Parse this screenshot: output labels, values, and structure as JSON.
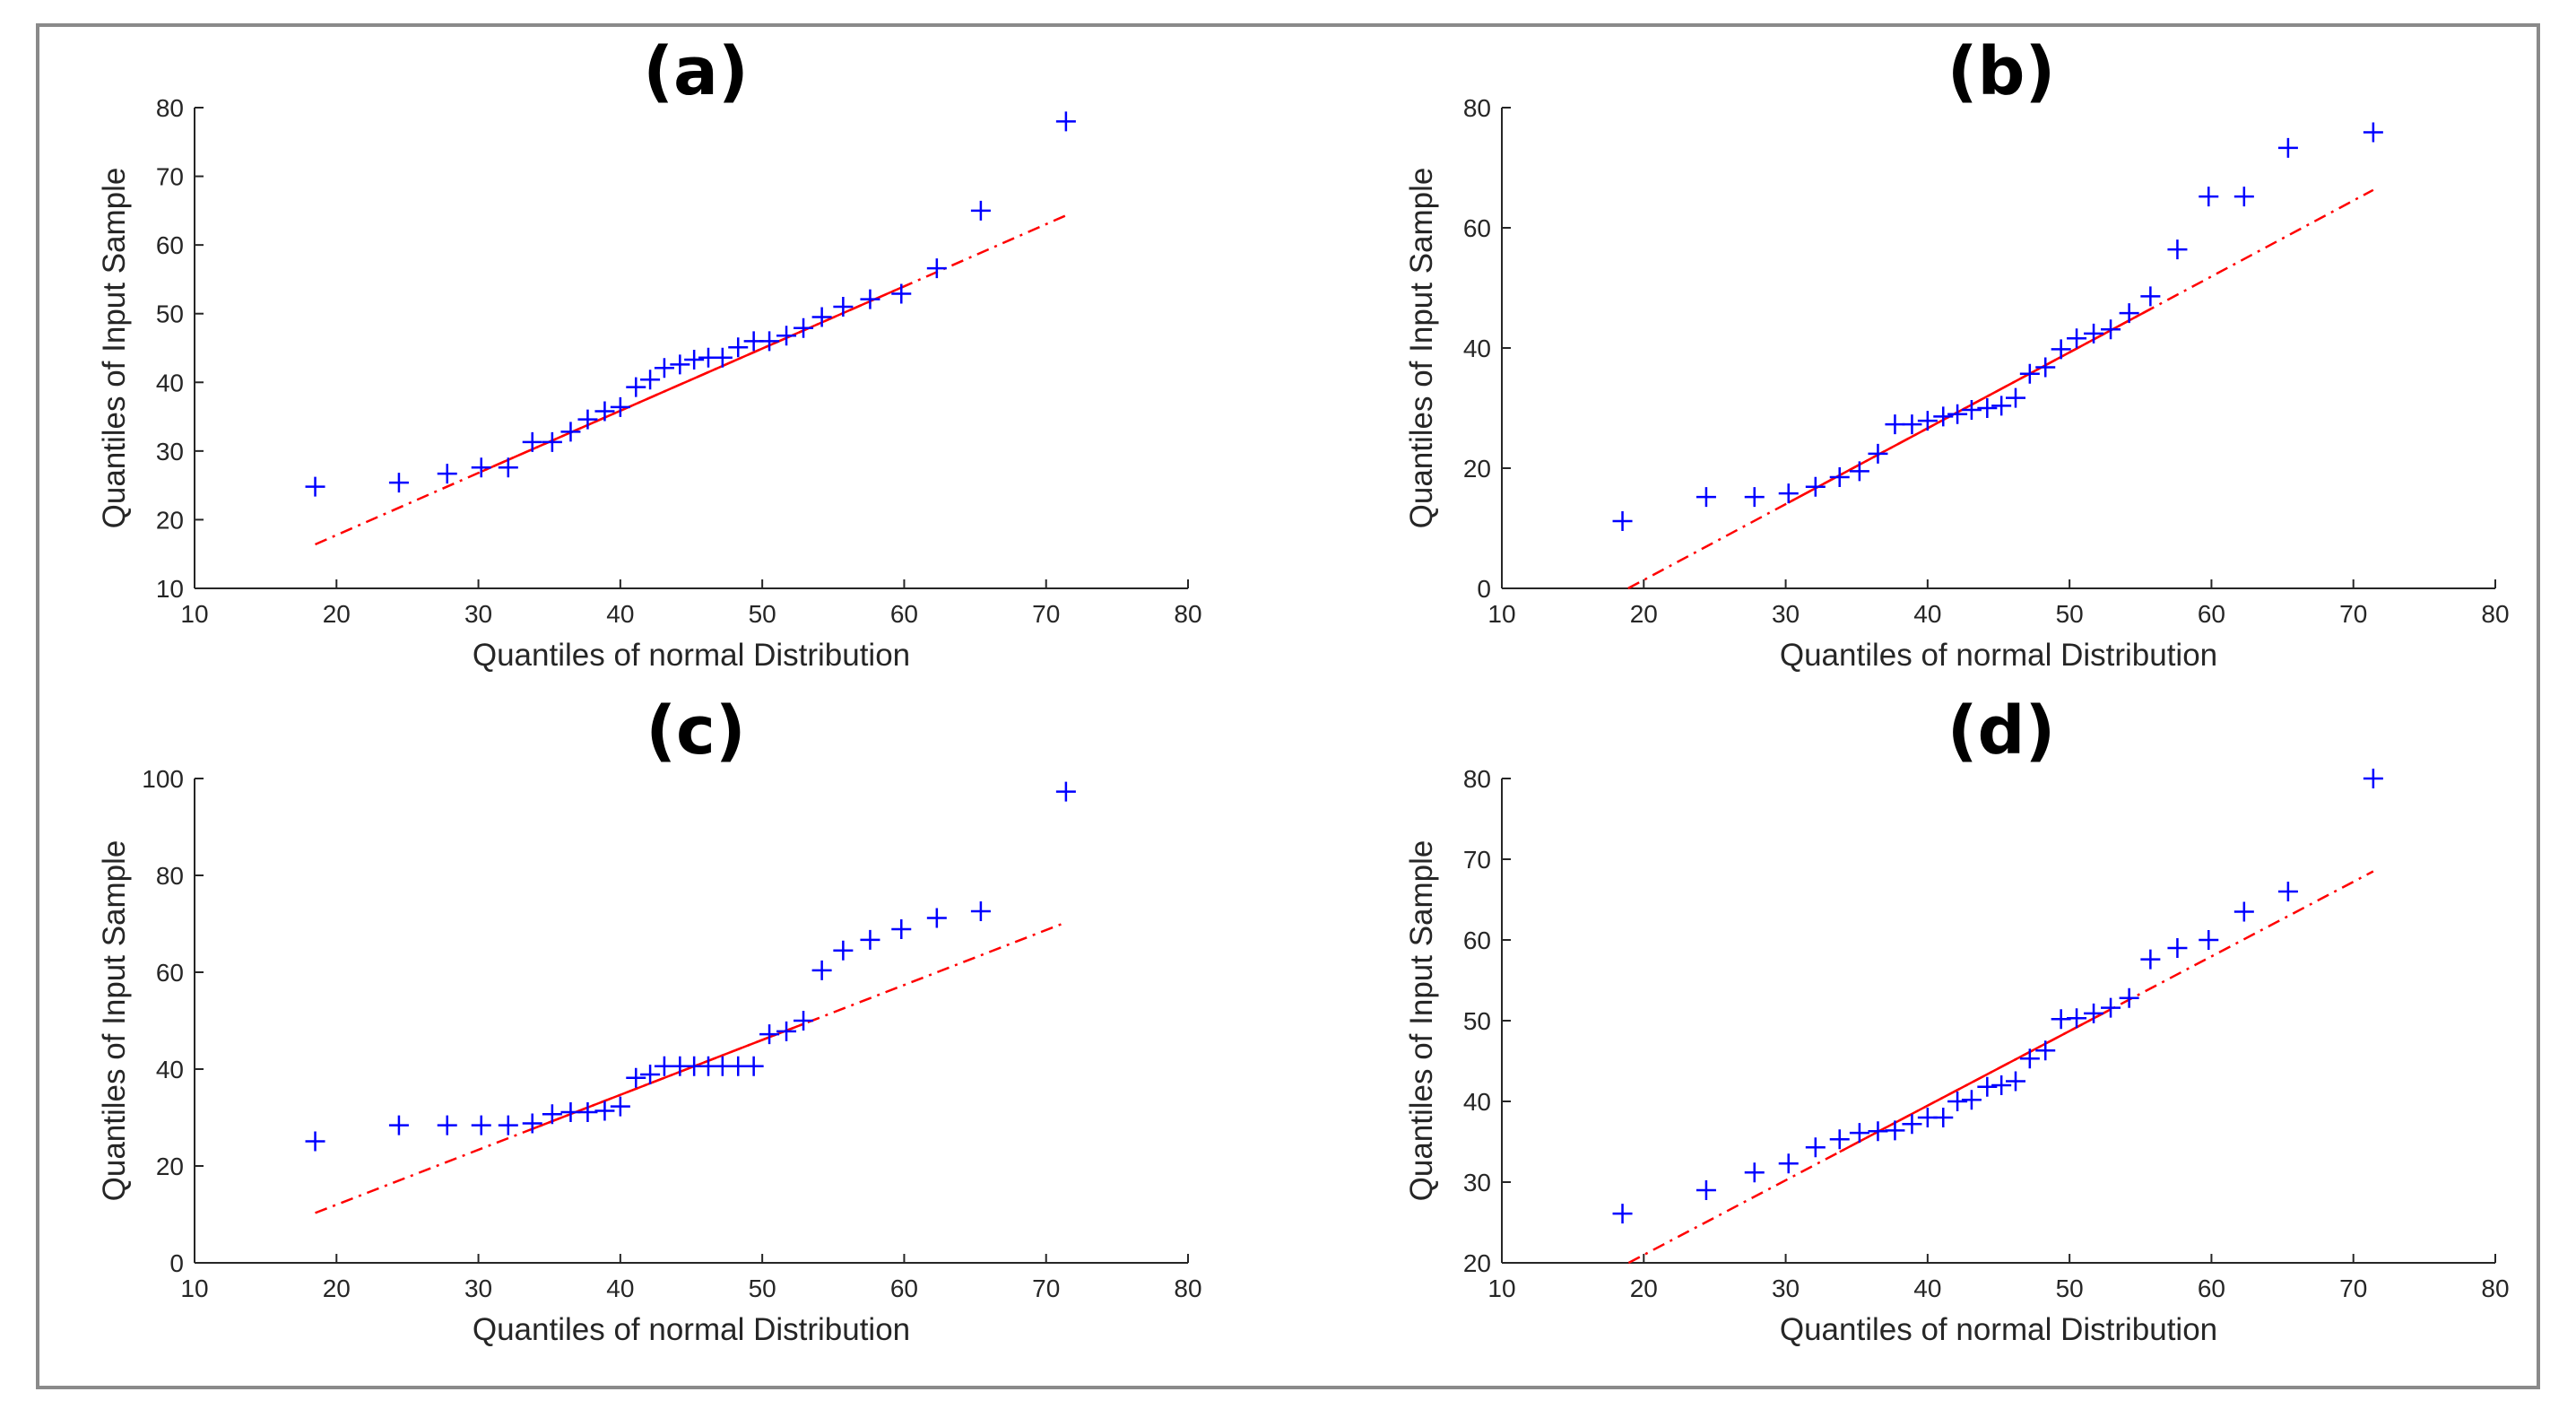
{
  "chart_data": [
    {
      "type": "scatter",
      "title": "(a)",
      "xlabel": "Quantiles of normal Distribution",
      "ylabel": "Quantiles of Input Sample",
      "xlim": [
        10,
        80
      ],
      "ylim": [
        10,
        80
      ],
      "xticks": [
        10,
        20,
        30,
        40,
        50,
        60,
        70,
        80
      ],
      "yticks": [
        10,
        20,
        30,
        40,
        50,
        60,
        70,
        80
      ],
      "marker_color": "#0000ff",
      "line_color": "#ff0000",
      "points": [
        [
          18.5,
          24.8
        ],
        [
          24.4,
          25.4
        ],
        [
          27.8,
          26.7
        ],
        [
          30.2,
          27.6
        ],
        [
          32.1,
          27.6
        ],
        [
          33.8,
          31.3
        ],
        [
          35.2,
          31.3
        ],
        [
          36.5,
          32.8
        ],
        [
          37.7,
          34.6
        ],
        [
          38.9,
          35.8
        ],
        [
          40.0,
          36.4
        ],
        [
          41.1,
          39.3
        ],
        [
          42.1,
          40.4
        ],
        [
          43.1,
          42.1
        ],
        [
          44.2,
          42.6
        ],
        [
          45.2,
          43.3
        ],
        [
          46.2,
          43.6
        ],
        [
          47.2,
          43.6
        ],
        [
          48.3,
          45.1
        ],
        [
          49.4,
          46.0
        ],
        [
          50.5,
          46.0
        ],
        [
          51.7,
          46.8
        ],
        [
          52.9,
          47.9
        ],
        [
          54.2,
          49.5
        ],
        [
          55.7,
          51.0
        ],
        [
          57.6,
          52.1
        ],
        [
          59.8,
          52.9
        ],
        [
          62.3,
          56.6
        ],
        [
          65.4,
          65.0
        ],
        [
          71.4,
          78.0
        ]
      ],
      "fit_line": {
        "x": [
          18.5,
          71.4
        ],
        "y": [
          16.4,
          64.3
        ],
        "solid_x": [
          30.2,
          59.8
        ]
      }
    },
    {
      "type": "scatter",
      "title": "(b)",
      "xlabel": "Quantiles of normal Distribution",
      "ylabel": "Quantiles of Input Sample",
      "xlim": [
        10,
        80
      ],
      "ylim": [
        0,
        80
      ],
      "xticks": [
        10,
        20,
        30,
        40,
        50,
        60,
        70,
        80
      ],
      "yticks": [
        0,
        20,
        40,
        60,
        80
      ],
      "marker_color": "#0000ff",
      "line_color": "#ff0000",
      "points": [
        [
          18.5,
          11.2
        ],
        [
          24.4,
          15.2
        ],
        [
          27.8,
          15.2
        ],
        [
          30.2,
          15.8
        ],
        [
          32.1,
          16.9
        ],
        [
          33.8,
          18.5
        ],
        [
          35.2,
          19.5
        ],
        [
          36.5,
          22.4
        ],
        [
          37.7,
          27.3
        ],
        [
          38.9,
          27.3
        ],
        [
          40.0,
          27.9
        ],
        [
          41.1,
          28.6
        ],
        [
          42.1,
          29.0
        ],
        [
          43.1,
          29.7
        ],
        [
          44.2,
          30.0
        ],
        [
          45.2,
          30.4
        ],
        [
          46.2,
          31.7
        ],
        [
          47.2,
          35.7
        ],
        [
          48.3,
          36.8
        ],
        [
          49.4,
          39.8
        ],
        [
          50.5,
          41.6
        ],
        [
          51.7,
          42.4
        ],
        [
          52.9,
          43.1
        ],
        [
          54.2,
          45.8
        ],
        [
          55.7,
          48.6
        ],
        [
          57.6,
          56.4
        ],
        [
          59.8,
          65.2
        ],
        [
          62.3,
          65.2
        ],
        [
          65.4,
          73.3
        ],
        [
          71.4,
          75.9
        ]
      ],
      "fit_line": {
        "x": [
          18.5,
          71.4
        ],
        "y": [
          -0.5,
          66.3
        ],
        "solid_x": [
          30.2,
          55.7
        ]
      }
    },
    {
      "type": "scatter",
      "title": "(c)",
      "xlabel": "Quantiles of normal Distribution",
      "ylabel": "Quantiles of Input Sample",
      "xlim": [
        10,
        80
      ],
      "ylim": [
        0,
        100
      ],
      "xticks": [
        10,
        20,
        30,
        40,
        50,
        60,
        70,
        80
      ],
      "yticks": [
        0,
        20,
        40,
        60,
        80,
        100
      ],
      "marker_color": "#0000ff",
      "line_color": "#ff0000",
      "points": [
        [
          18.5,
          25.1
        ],
        [
          24.4,
          28.4
        ],
        [
          27.8,
          28.4
        ],
        [
          30.2,
          28.4
        ],
        [
          32.1,
          28.4
        ],
        [
          33.8,
          28.8
        ],
        [
          35.2,
          30.7
        ],
        [
          36.5,
          31.1
        ],
        [
          37.7,
          31.1
        ],
        [
          38.9,
          31.4
        ],
        [
          40.0,
          32.3
        ],
        [
          41.1,
          38.2
        ],
        [
          42.1,
          38.9
        ],
        [
          43.1,
          40.6
        ],
        [
          44.2,
          40.6
        ],
        [
          45.2,
          40.6
        ],
        [
          46.2,
          40.6
        ],
        [
          47.2,
          40.6
        ],
        [
          48.3,
          40.6
        ],
        [
          49.4,
          40.6
        ],
        [
          50.5,
          47.2
        ],
        [
          51.7,
          47.8
        ],
        [
          52.9,
          50.0
        ],
        [
          54.2,
          60.4
        ],
        [
          55.7,
          64.5
        ],
        [
          57.6,
          66.7
        ],
        [
          59.8,
          68.9
        ],
        [
          62.3,
          71.2
        ],
        [
          65.4,
          72.6
        ],
        [
          71.4,
          97.3
        ]
      ],
      "fit_line": {
        "x": [
          18.5,
          71.4
        ],
        "y": [
          10.3,
          70.3
        ],
        "solid_x": [
          33.8,
          52.9
        ]
      }
    },
    {
      "type": "scatter",
      "title": "(d)",
      "xlabel": "Quantiles of normal Distribution",
      "ylabel": "Quantiles of Input Sample",
      "xlim": [
        10,
        80
      ],
      "ylim": [
        20,
        80
      ],
      "xticks": [
        10,
        20,
        30,
        40,
        50,
        60,
        70,
        80
      ],
      "yticks": [
        20,
        30,
        40,
        50,
        60,
        70,
        80
      ],
      "marker_color": "#0000ff",
      "line_color": "#ff0000",
      "points": [
        [
          18.5,
          26.1
        ],
        [
          24.4,
          29.0
        ],
        [
          27.8,
          31.2
        ],
        [
          30.2,
          32.3
        ],
        [
          32.1,
          34.3
        ],
        [
          33.8,
          35.3
        ],
        [
          35.2,
          36.1
        ],
        [
          36.5,
          36.3
        ],
        [
          37.7,
          36.4
        ],
        [
          38.9,
          37.2
        ],
        [
          40.0,
          38.0
        ],
        [
          41.1,
          38.0
        ],
        [
          42.1,
          40.0
        ],
        [
          43.1,
          40.2
        ],
        [
          44.2,
          41.8
        ],
        [
          45.2,
          42.0
        ],
        [
          46.2,
          42.5
        ],
        [
          47.2,
          45.3
        ],
        [
          48.3,
          46.3
        ],
        [
          49.4,
          50.2
        ],
        [
          50.5,
          50.3
        ],
        [
          51.7,
          50.9
        ],
        [
          52.9,
          51.6
        ],
        [
          54.2,
          52.8
        ],
        [
          55.7,
          57.6
        ],
        [
          57.6,
          59.0
        ],
        [
          59.8,
          60.0
        ],
        [
          62.3,
          63.5
        ],
        [
          65.4,
          66.0
        ],
        [
          71.4,
          80.0
        ]
      ],
      "fit_line": {
        "x": [
          18.5,
          71.4
        ],
        "y": [
          19.6,
          68.5
        ],
        "solid_x": [
          33.8,
          52.9
        ]
      }
    }
  ]
}
